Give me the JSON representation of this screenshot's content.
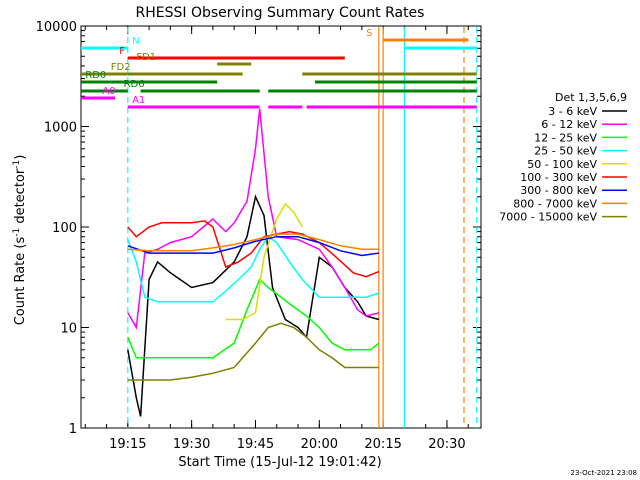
{
  "chart_data": {
    "type": "line",
    "title": "RHESSI Observing Summary Count Rates",
    "xlabel": "Start Time (15-Jul-12 19:01:42)",
    "ylabel": "Count Rate (s⁻¹ detector⁻¹)",
    "ylabel_parts": {
      "base": "Count Rate (s",
      "sup1": "-1",
      "mid": " detector",
      "sup2": "-1",
      "end": ")"
    },
    "x_scale": "time",
    "xlim": [
      "19:04",
      "20:38"
    ],
    "ylim": [
      1,
      10000
    ],
    "y_scale": "log",
    "x_ticks": [
      "19:15",
      "19:30",
      "19:45",
      "20:00",
      "20:15",
      "20:30"
    ],
    "y_ticks": [
      "1",
      "10",
      "100",
      "1000",
      "10000"
    ],
    "legend_title": "Det 1,3,5,6,9",
    "legend_position": "right",
    "footer_date": "23-Oct-2021 23:08",
    "series": [
      {
        "name": "3 - 6 keV",
        "color": "#000000",
        "points": [
          [
            "19:15",
            6
          ],
          [
            "19:17",
            2
          ],
          [
            "19:18",
            1.3
          ],
          [
            "19:20",
            30
          ],
          [
            "19:22",
            45
          ],
          [
            "19:25",
            35
          ],
          [
            "19:30",
            25
          ],
          [
            "19:35",
            28
          ],
          [
            "19:40",
            45
          ],
          [
            "19:43",
            80
          ],
          [
            "19:45",
            200
          ],
          [
            "19:47",
            130
          ],
          [
            "19:49",
            25
          ],
          [
            "19:52",
            12
          ],
          [
            "19:55",
            10
          ],
          [
            "19:57",
            8
          ],
          [
            "20:00",
            50
          ],
          [
            "20:03",
            40
          ],
          [
            "20:06",
            25
          ],
          [
            "20:09",
            18
          ],
          [
            "20:11",
            13
          ],
          [
            "20:14",
            12
          ]
        ]
      },
      {
        "name": "6 - 12 keV",
        "color": "#ff00ff",
        "points": [
          [
            "19:15",
            14
          ],
          [
            "19:17",
            10
          ],
          [
            "19:19",
            55
          ],
          [
            "19:22",
            60
          ],
          [
            "19:25",
            70
          ],
          [
            "19:30",
            80
          ],
          [
            "19:35",
            120
          ],
          [
            "19:38",
            90
          ],
          [
            "19:40",
            110
          ],
          [
            "19:43",
            180
          ],
          [
            "19:45",
            600
          ],
          [
            "19:46",
            1500
          ],
          [
            "19:48",
            200
          ],
          [
            "19:50",
            80
          ],
          [
            "19:55",
            75
          ],
          [
            "20:00",
            60
          ],
          [
            "20:03",
            40
          ],
          [
            "20:06",
            25
          ],
          [
            "20:09",
            15
          ],
          [
            "20:11",
            13
          ],
          [
            "20:14",
            14
          ]
        ]
      },
      {
        "name": "12 - 25 keV",
        "color": "#00ff00",
        "points": [
          [
            "19:15",
            8
          ],
          [
            "19:17",
            5
          ],
          [
            "19:20",
            5
          ],
          [
            "19:25",
            5
          ],
          [
            "19:30",
            5
          ],
          [
            "19:35",
            5
          ],
          [
            "19:40",
            7
          ],
          [
            "19:43",
            15
          ],
          [
            "19:46",
            30
          ],
          [
            "19:48",
            25
          ],
          [
            "19:51",
            20
          ],
          [
            "19:54",
            16
          ],
          [
            "19:57",
            13
          ],
          [
            "20:00",
            10
          ],
          [
            "20:03",
            7
          ],
          [
            "20:06",
            6
          ],
          [
            "20:09",
            6
          ],
          [
            "20:12",
            6
          ],
          [
            "20:14",
            7
          ]
        ]
      },
      {
        "name": "25 - 50 keV",
        "color": "#00ffff",
        "points": [
          [
            "19:15",
            75
          ],
          [
            "19:17",
            45
          ],
          [
            "19:19",
            20
          ],
          [
            "19:22",
            18
          ],
          [
            "19:25",
            18
          ],
          [
            "19:30",
            18
          ],
          [
            "19:35",
            18
          ],
          [
            "19:38",
            23
          ],
          [
            "19:41",
            30
          ],
          [
            "19:44",
            40
          ],
          [
            "19:46",
            60
          ],
          [
            "19:48",
            80
          ],
          [
            "19:50",
            70
          ],
          [
            "19:53",
            45
          ],
          [
            "19:56",
            30
          ],
          [
            "20:00",
            20
          ],
          [
            "20:04",
            20
          ],
          [
            "20:08",
            20
          ],
          [
            "20:11",
            20
          ],
          [
            "20:14",
            22
          ]
        ]
      },
      {
        "name": "50 - 100 keV",
        "color": "#dddd00",
        "points": [
          [
            "19:38",
            12
          ],
          [
            "19:42",
            12
          ],
          [
            "19:45",
            14
          ],
          [
            "19:47",
            50
          ],
          [
            "19:50",
            120
          ],
          [
            "19:52",
            170
          ],
          [
            "19:54",
            140
          ],
          [
            "19:56",
            100
          ]
        ]
      },
      {
        "name": "100 - 300 keV",
        "color": "#ff0000",
        "points": [
          [
            "19:15",
            100
          ],
          [
            "19:17",
            80
          ],
          [
            "19:20",
            100
          ],
          [
            "19:23",
            110
          ],
          [
            "19:27",
            110
          ],
          [
            "19:30",
            110
          ],
          [
            "19:33",
            115
          ],
          [
            "19:35",
            100
          ],
          [
            "19:38",
            40
          ],
          [
            "19:41",
            45
          ],
          [
            "19:44",
            55
          ],
          [
            "19:47",
            80
          ],
          [
            "19:50",
            85
          ],
          [
            "19:53",
            90
          ],
          [
            "19:56",
            85
          ],
          [
            "20:00",
            70
          ],
          [
            "20:04",
            50
          ],
          [
            "20:08",
            35
          ],
          [
            "20:11",
            32
          ],
          [
            "20:14",
            36
          ]
        ]
      },
      {
        "name": "300 - 800 keV",
        "color": "#0000ff",
        "points": [
          [
            "19:15",
            65
          ],
          [
            "19:20",
            55
          ],
          [
            "19:25",
            55
          ],
          [
            "19:30",
            55
          ],
          [
            "19:35",
            55
          ],
          [
            "19:40",
            62
          ],
          [
            "19:45",
            72
          ],
          [
            "19:50",
            80
          ],
          [
            "19:55",
            80
          ],
          [
            "20:00",
            70
          ],
          [
            "20:05",
            58
          ],
          [
            "20:10",
            52
          ],
          [
            "20:14",
            55
          ]
        ]
      },
      {
        "name": "800 - 7000 keV",
        "color": "#ff8000",
        "points": [
          [
            "19:15",
            60
          ],
          [
            "19:20",
            58
          ],
          [
            "19:25",
            58
          ],
          [
            "19:30",
            58
          ],
          [
            "19:35",
            62
          ],
          [
            "19:40",
            67
          ],
          [
            "19:45",
            75
          ],
          [
            "19:50",
            85
          ],
          [
            "19:55",
            85
          ],
          [
            "20:00",
            75
          ],
          [
            "20:05",
            65
          ],
          [
            "20:10",
            60
          ],
          [
            "20:14",
            60
          ]
        ]
      },
      {
        "name": "7000 - 15000 keV",
        "color": "#808000",
        "points": [
          [
            "19:15",
            3
          ],
          [
            "19:17",
            3
          ],
          [
            "19:20",
            3
          ],
          [
            "19:25",
            3
          ],
          [
            "19:30",
            3.2
          ],
          [
            "19:35",
            3.5
          ],
          [
            "19:40",
            4
          ],
          [
            "19:45",
            7
          ],
          [
            "19:48",
            10
          ],
          [
            "19:51",
            11
          ],
          [
            "19:54",
            10
          ],
          [
            "19:57",
            8
          ],
          [
            "20:00",
            6
          ],
          [
            "20:03",
            5
          ],
          [
            "20:06",
            4
          ],
          [
            "20:09",
            4
          ],
          [
            "20:12",
            4
          ],
          [
            "20:14",
            4
          ]
        ]
      }
    ],
    "flags": [
      {
        "label": "N",
        "color": "#00ffff",
        "segments": [
          [
            "19:04",
            "19:15"
          ],
          [
            "20:20",
            "20:37"
          ]
        ],
        "label_at": "19:16"
      },
      {
        "label": "S",
        "color": "#ff8000",
        "segments": [
          [
            "20:15",
            "20:35"
          ]
        ],
        "label_at": "20:11"
      },
      {
        "label": "F",
        "color": "#ff0000",
        "segments": [
          [
            "19:15",
            "20:06"
          ]
        ],
        "label_at": "19:13"
      },
      {
        "label": "FD1",
        "color": "#808000",
        "segments": [
          [
            "19:36",
            "19:44"
          ]
        ],
        "label_at": "19:17"
      },
      {
        "label": "FD2",
        "color": "#808000",
        "segments": [
          [
            "19:04",
            "19:15"
          ],
          [
            "19:15",
            "19:42"
          ],
          [
            "19:56",
            "20:37"
          ]
        ],
        "label_at": "19:11"
      },
      {
        "label": "RD0",
        "color": "#008000",
        "segments": [
          [
            "19:04",
            "19:11"
          ],
          [
            "19:11",
            "19:36"
          ],
          [
            "19:59",
            "20:37"
          ]
        ],
        "label_at": "19:05"
      },
      {
        "label": "RD6",
        "color": "#008000",
        "segments": [
          [
            "19:04",
            "19:15"
          ],
          [
            "19:18",
            "19:46"
          ],
          [
            "19:48",
            "20:35"
          ],
          [
            "20:35",
            "20:37"
          ]
        ],
        "label_at": "19:14"
      },
      {
        "label": "A0",
        "color": "#ff00ff",
        "segments": [
          [
            "19:04",
            "19:12"
          ]
        ],
        "label_at": "19:09"
      },
      {
        "label": "A1",
        "color": "#ff00ff",
        "segments": [
          [
            "19:15",
            "19:46"
          ],
          [
            "19:48",
            "19:56"
          ],
          [
            "19:57",
            "20:37"
          ]
        ],
        "label_at": "19:16"
      }
    ],
    "vertical_markers": [
      {
        "time": "19:15",
        "color": "#00ffff",
        "style": "dashed"
      },
      {
        "time": "20:14",
        "color": "#ff8000",
        "style": "solid"
      },
      {
        "time": "20:15",
        "color": "#ff8000",
        "style": "solid"
      },
      {
        "time": "20:20",
        "color": "#00ffff",
        "style": "solid"
      },
      {
        "time": "20:34",
        "color": "#ff8000",
        "style": "dashed"
      },
      {
        "time": "20:37",
        "color": "#00ffff",
        "style": "dashed"
      }
    ]
  }
}
